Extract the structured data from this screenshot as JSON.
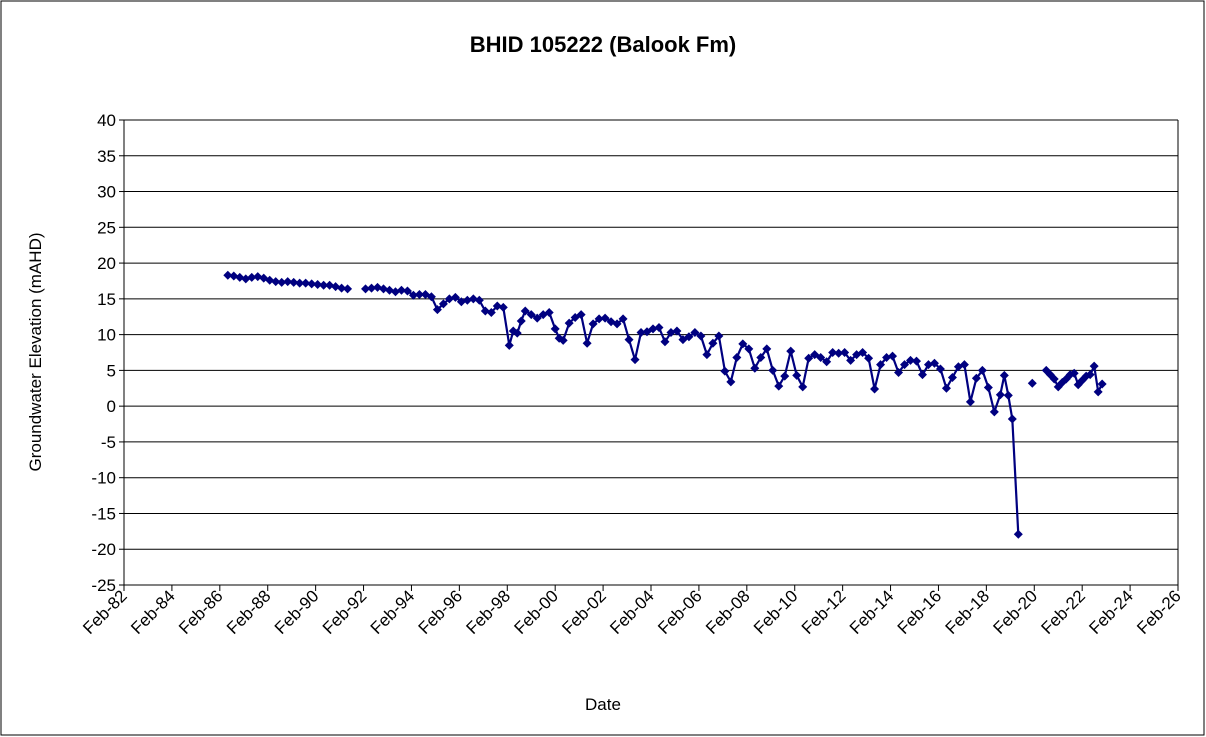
{
  "chart_data": {
    "type": "line",
    "title": "BHID 105222 (Balook Fm)",
    "xlabel": "Date",
    "ylabel": "Groundwater Elevation (mAHD)",
    "x": [
      "1986-06",
      "1986-09",
      "1986-12",
      "1987-03",
      "1987-06",
      "1987-09",
      "1987-12",
      "1988-03",
      "1988-06",
      "1988-09",
      "1988-12",
      "1989-03",
      "1989-06",
      "1989-09",
      "1989-12",
      "1990-03",
      "1990-06",
      "1990-09",
      "1990-12",
      "1991-03",
      "1991-06",
      "1991-12",
      "1992-03",
      "1992-06",
      "1992-09",
      "1992-12",
      "1993-03",
      "1993-06",
      "1993-09",
      "1993-12",
      "1994-03",
      "1994-06",
      "1994-09",
      "1994-12",
      "1995-03",
      "1995-06",
      "1995-09",
      "1995-12",
      "1996-03",
      "1996-06",
      "1996-09",
      "1996-12",
      "1997-03",
      "1997-06",
      "1997-09",
      "1997-12",
      "1998-03",
      "1998-05",
      "1998-07",
      "1998-09",
      "1998-11",
      "1999-02",
      "1999-05",
      "1999-08",
      "1999-11",
      "2000-02",
      "2000-04",
      "2000-06",
      "2000-09",
      "2000-12",
      "2001-03",
      "2001-06",
      "2001-09",
      "2001-12",
      "2002-03",
      "2002-06",
      "2002-09",
      "2002-12",
      "2003-03",
      "2003-06",
      "2003-09",
      "2003-12",
      "2004-03",
      "2004-06",
      "2004-09",
      "2004-12",
      "2005-03",
      "2005-06",
      "2005-09",
      "2005-12",
      "2006-03",
      "2006-06",
      "2006-09",
      "2006-12",
      "2007-03",
      "2007-06",
      "2007-09",
      "2007-12",
      "2008-03",
      "2008-06",
      "2008-09",
      "2008-12",
      "2009-03",
      "2009-06",
      "2009-09",
      "2009-12",
      "2010-03",
      "2010-06",
      "2010-09",
      "2010-12",
      "2011-03",
      "2011-06",
      "2011-09",
      "2011-12",
      "2012-03",
      "2012-06",
      "2012-09",
      "2012-12",
      "2013-03",
      "2013-06",
      "2013-09",
      "2013-12",
      "2014-03",
      "2014-06",
      "2014-09",
      "2014-12",
      "2015-03",
      "2015-06",
      "2015-09",
      "2015-12",
      "2016-03",
      "2016-06",
      "2016-09",
      "2016-12",
      "2017-03",
      "2017-06",
      "2017-09",
      "2017-12",
      "2018-03",
      "2018-06",
      "2018-09",
      "2018-11",
      "2019-01",
      "2019-03",
      "2019-06",
      "2019-09",
      "2020-01",
      "2020-04",
      "2020-08",
      "2020-10",
      "2020-12",
      "2021-02",
      "2021-04",
      "2021-06",
      "2021-08",
      "2021-10",
      "2021-12",
      "2022-02",
      "2022-04",
      "2022-06",
      "2022-08",
      "2022-10",
      "2022-12"
    ],
    "series": [
      {
        "name": "Groundwater Elevation",
        "color": "#000080",
        "values": [
          18.3,
          18.2,
          18.0,
          17.8,
          18.0,
          18.1,
          17.9,
          17.6,
          17.4,
          17.3,
          17.4,
          17.3,
          17.2,
          17.2,
          17.1,
          17.0,
          16.9,
          16.9,
          16.7,
          16.5,
          16.4,
          null,
          16.4,
          16.5,
          16.6,
          16.4,
          16.2,
          16.0,
          16.2,
          16.1,
          15.5,
          15.6,
          15.6,
          15.3,
          13.5,
          14.3,
          15.0,
          15.2,
          14.6,
          14.8,
          15.0,
          14.8,
          13.3,
          13.1,
          14.0,
          13.8,
          8.5,
          10.5,
          10.2,
          11.9,
          13.3,
          12.8,
          12.3,
          12.8,
          13.1,
          10.8,
          9.5,
          9.2,
          11.6,
          12.4,
          12.8,
          8.8,
          11.5,
          12.2,
          12.3,
          11.8,
          11.5,
          12.2,
          9.3,
          6.5,
          10.3,
          10.4,
          10.8,
          11.0,
          9.0,
          10.3,
          10.5,
          9.3,
          9.7,
          10.3,
          9.8,
          7.2,
          8.8,
          9.8,
          4.9,
          3.4,
          6.8,
          8.7,
          8.0,
          5.3,
          6.8,
          8.0,
          5.0,
          2.8,
          4.2,
          7.7,
          4.3,
          2.7,
          6.7,
          7.2,
          6.8,
          6.2,
          7.5,
          7.4,
          7.5,
          6.4,
          7.2,
          7.5,
          6.7,
          2.4,
          5.8,
          6.8,
          7.0,
          4.7,
          5.8,
          6.4,
          6.3,
          4.4,
          5.8,
          6.0,
          5.2,
          2.5,
          4.0,
          5.5,
          5.8,
          0.6,
          3.9,
          5.0,
          2.6,
          -0.8,
          1.6,
          4.3,
          1.5,
          -1.8,
          -17.9,
          null,
          3.2,
          null,
          5.0,
          4.4,
          3.8,
          2.7,
          3.3,
          3.8,
          4.4,
          4.6,
          3.0,
          3.6,
          4.2,
          4.4,
          5.6,
          2.0,
          3.1
        ]
      }
    ],
    "xlim": [
      "1982-02",
      "2026-02"
    ],
    "xticks": [
      {
        "value": "1982-02",
        "label": "Feb-82"
      },
      {
        "value": "1984-02",
        "label": "Feb-84"
      },
      {
        "value": "1986-02",
        "label": "Feb-86"
      },
      {
        "value": "1988-02",
        "label": "Feb-88"
      },
      {
        "value": "1990-02",
        "label": "Feb-90"
      },
      {
        "value": "1992-02",
        "label": "Feb-92"
      },
      {
        "value": "1994-02",
        "label": "Feb-94"
      },
      {
        "value": "1996-02",
        "label": "Feb-96"
      },
      {
        "value": "1998-02",
        "label": "Feb-98"
      },
      {
        "value": "2000-02",
        "label": "Feb-00"
      },
      {
        "value": "2002-02",
        "label": "Feb-02"
      },
      {
        "value": "2004-02",
        "label": "Feb-04"
      },
      {
        "value": "2006-02",
        "label": "Feb-06"
      },
      {
        "value": "2008-02",
        "label": "Feb-08"
      },
      {
        "value": "2010-02",
        "label": "Feb-10"
      },
      {
        "value": "2012-02",
        "label": "Feb-12"
      },
      {
        "value": "2014-02",
        "label": "Feb-14"
      },
      {
        "value": "2016-02",
        "label": "Feb-16"
      },
      {
        "value": "2018-02",
        "label": "Feb-18"
      },
      {
        "value": "2020-02",
        "label": "Feb-20"
      },
      {
        "value": "2022-02",
        "label": "Feb-22"
      },
      {
        "value": "2024-02",
        "label": "Feb-24"
      },
      {
        "value": "2026-02",
        "label": "Feb-26"
      }
    ],
    "ylim": [
      -25,
      40
    ],
    "yticks": [
      -25,
      -20,
      -15,
      -10,
      -5,
      0,
      5,
      10,
      15,
      20,
      25,
      30,
      35,
      40
    ],
    "grid": true
  }
}
